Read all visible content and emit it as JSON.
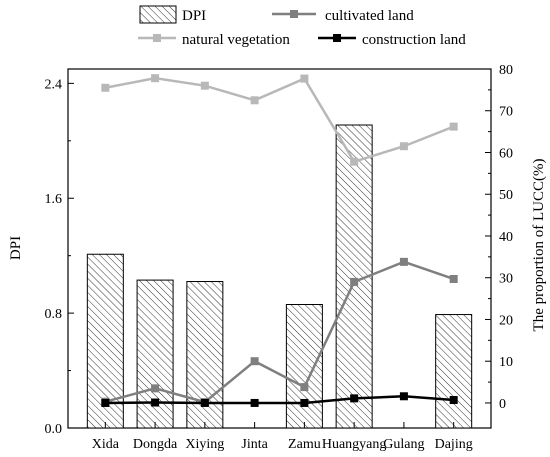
{
  "chart_data": {
    "type": "bar",
    "categories": [
      "Xida",
      "Dongda",
      "Xiying",
      "Jinta",
      "Zamu",
      "Huangyang",
      "Gulang",
      "Dajing"
    ],
    "left_axis": {
      "label": "DPI",
      "range": [
        0,
        2.5
      ],
      "ticks": [
        0.0,
        0.8,
        1.6,
        2.4
      ],
      "tick_labels": [
        "0.0",
        "0.8",
        "1.6",
        "2.4"
      ]
    },
    "right_axis": {
      "label": "The proportion of LUCC(%)",
      "range": [
        -6,
        80
      ],
      "ticks": [
        0,
        10,
        20,
        30,
        40,
        50,
        60,
        70,
        80
      ],
      "tick_labels": [
        "0",
        "10",
        "20",
        "30",
        "40",
        "50",
        "60",
        "70",
        "80"
      ]
    },
    "bars": {
      "name": "DPI",
      "axis": "left",
      "values": [
        1.21,
        1.03,
        1.02,
        null,
        0.86,
        2.11,
        null,
        0.79
      ]
    },
    "series": [
      {
        "name": "cultivated land",
        "axis": "right",
        "color": "#7f7f7f",
        "values": [
          0.3,
          3.5,
          0.2,
          10.0,
          3.8,
          29.0,
          33.8,
          29.7
        ]
      },
      {
        "name": "natural vegetation",
        "axis": "right",
        "color": "#b8b8b8",
        "values": [
          75.5,
          77.8,
          76.0,
          72.5,
          77.7,
          57.8,
          61.5,
          66.2
        ]
      },
      {
        "name": "construction land",
        "axis": "right",
        "color": "#000000",
        "values": [
          0.0,
          0.1,
          0.0,
          0.0,
          0.0,
          1.1,
          1.6,
          0.7
        ]
      }
    ],
    "legend_position": "top",
    "grid": false
  }
}
